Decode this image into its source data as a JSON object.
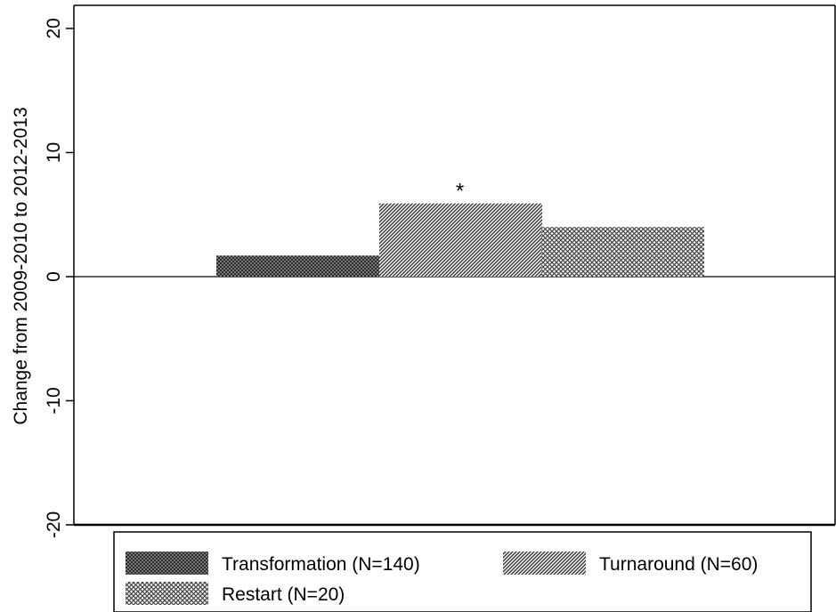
{
  "chart_data": {
    "type": "bar",
    "title": "",
    "xlabel": "",
    "ylabel": "Change from 2009-2010 to 2012-2013",
    "ylim": [
      -20,
      20
    ],
    "yticks": [
      -20,
      -10,
      0,
      10,
      20
    ],
    "grid": false,
    "legend_position": "bottom",
    "series": [
      {
        "name": "Transformation (N=140)",
        "values": [
          1.7
        ],
        "pattern": "cross-dense"
      },
      {
        "name": "Turnaround (N=60)",
        "values": [
          5.9
        ],
        "pattern": "diagonal"
      },
      {
        "name": "Restart (N=20)",
        "values": [
          4.0
        ],
        "pattern": "cross-light"
      }
    ],
    "annotations": [
      {
        "text": "*",
        "series": "Turnaround (N=60)"
      }
    ]
  }
}
